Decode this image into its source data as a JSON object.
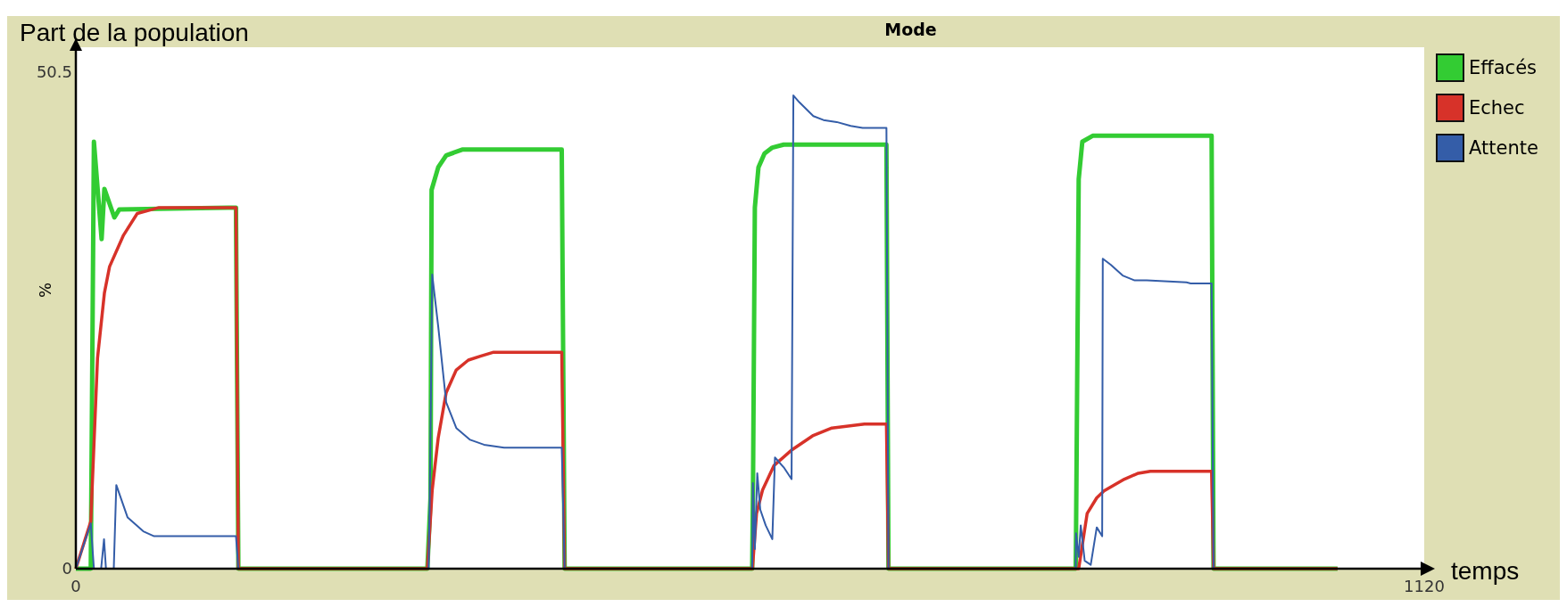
{
  "chart_data": {
    "type": "line",
    "title": "Mode",
    "xlabel": "temps",
    "ylabel": "%",
    "annotations": [
      "Part de la population"
    ],
    "xlim": [
      0,
      1120
    ],
    "ylim": [
      0,
      53
    ],
    "xticks": [
      0,
      1120
    ],
    "yticks": [
      0,
      50.5
    ],
    "grid": false,
    "legend": "top right",
    "marker": "none",
    "line_style": "solid",
    "series": [
      {
        "name": "Effacés",
        "color": "#33cc33",
        "x": [
          0,
          12.4,
          15,
          21.4,
          23.7,
          32,
          36,
          133,
          135,
          292,
          294.6,
          295.5,
          301,
          307.6,
          320.9,
          403.6,
          406,
          561.8,
          562.5,
          564,
          567,
          572,
          578.5,
          588,
          673.3,
          675,
          830.5,
          830.8,
          833,
          836,
          844.6,
          853,
          943.4,
          945,
          1048
        ],
        "values": [
          0,
          0,
          43.4,
          33.5,
          38.6,
          35.7,
          36.5,
          36.7,
          0,
          0,
          7.2,
          38.5,
          40.8,
          42,
          42.6,
          42.6,
          0,
          0,
          8.7,
          36.7,
          40.8,
          42.2,
          42.8,
          43.1,
          43.1,
          0,
          0,
          3.6,
          39.6,
          43.4,
          44,
          44,
          44,
          0,
          0
        ]
      },
      {
        "name": "Echec",
        "color": "#d73229",
        "x": [
          0,
          12.4,
          18,
          23.7,
          28,
          39.6,
          51,
          69,
          133,
          135,
          292,
          296,
          301,
          307.6,
          316,
          326,
          336,
          347,
          403.6,
          406,
          562,
          565.4,
          570.4,
          580,
          595,
          612,
          628,
          655,
          673.3,
          675,
          833,
          840,
          848,
          854,
          871,
          882.5,
          892.5,
          943.4,
          945,
          1048
        ],
        "values": [
          0,
          4.8,
          21.4,
          28,
          30.7,
          33.9,
          36.1,
          36.7,
          36.7,
          0,
          0,
          8,
          13.3,
          17.9,
          20.2,
          21.2,
          21.6,
          22,
          22,
          0,
          0,
          5.6,
          8,
          10.5,
          12.1,
          13.5,
          14.3,
          14.7,
          14.7,
          0,
          0,
          5.6,
          7.2,
          7.9,
          9.1,
          9.7,
          9.9,
          9.9,
          0,
          0
        ]
      },
      {
        "name": "Attente",
        "color": "#345da8",
        "x": [
          0,
          12.4,
          15,
          21,
          23.4,
          25,
          31.5,
          33.6,
          43,
          56,
          65,
          133,
          135,
          293,
          294,
          296,
          301,
          307.6,
          316,
          327.5,
          339,
          355.7,
          403.6,
          406,
          561.8,
          562.4,
          564,
          566,
          568.5,
          573,
          578.5,
          580.7,
          588,
          594.5,
          596,
          601,
          612.6,
          621,
          632,
          643.6,
          653.5,
          673.3,
          675,
          830.5,
          830.8,
          833,
          834.7,
          838,
          843,
          848,
          852.5,
          853,
          859.6,
          869.5,
          879.5,
          889.5,
          922.5,
          926,
          943.4,
          945,
          1048
        ],
        "values": [
          0,
          4.6,
          0,
          0,
          3,
          0,
          0,
          8.5,
          5.2,
          3.8,
          3.3,
          3.3,
          0,
          0,
          7.2,
          29.9,
          24.6,
          16.9,
          14.3,
          13.1,
          12.6,
          12.3,
          12.3,
          0,
          0,
          8.7,
          2,
          9.7,
          6,
          4.4,
          3,
          11.3,
          10.3,
          9.1,
          48.1,
          47.4,
          46,
          45.6,
          45.4,
          45,
          44.8,
          44.8,
          0,
          0,
          3.6,
          1.2,
          4.4,
          0.8,
          0.4,
          4.2,
          3.3,
          31.5,
          30.9,
          29.8,
          29.3,
          29.3,
          29.1,
          29,
          29,
          0,
          0
        ]
      }
    ]
  }
}
